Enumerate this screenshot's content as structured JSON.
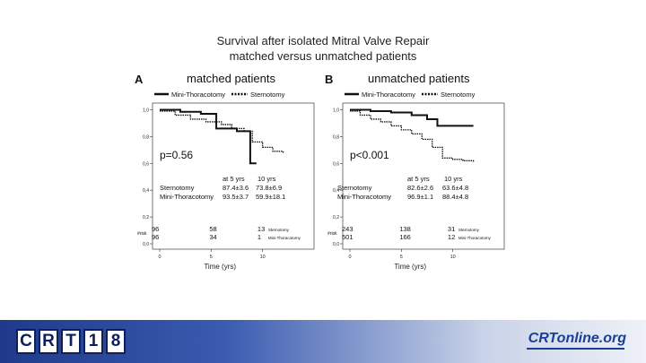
{
  "slide": {
    "title_line1": "Survival after isolated Mitral Valve Repair",
    "title_line2": "matched versus unmatched patients"
  },
  "chart_data": [
    {
      "type": "line",
      "panel_letter": "A",
      "title": "matched patients",
      "xlabel": "Time (yrs)",
      "ylabel": "",
      "xlim": [
        0,
        15
      ],
      "ylim": [
        0,
        1.05
      ],
      "xticks": [
        0,
        5,
        10
      ],
      "yticks": [
        0,
        0.2,
        0.4,
        0.6,
        0.8,
        1.0
      ],
      "ytick_labels": [
        "0,0",
        "0,2",
        "0,4",
        "0,6",
        "0,8",
        "1,0"
      ],
      "legend": [
        {
          "name": "Mini-Thoracotomy",
          "style": "solid"
        },
        {
          "name": "Sternotomy",
          "style": "dotted"
        }
      ],
      "p_value": "p=0.56",
      "series": [
        {
          "name": "Mini-Thoracotomy",
          "style": "solid",
          "x": [
            0,
            2,
            4,
            5.5,
            5.5,
            7.5,
            8.8,
            8.8,
            9.4
          ],
          "y": [
            1.0,
            0.985,
            0.97,
            0.94,
            0.86,
            0.84,
            0.75,
            0.6,
            0.6
          ]
        },
        {
          "name": "Sternotomy",
          "style": "dotted",
          "x": [
            0,
            1.5,
            3,
            4.5,
            6,
            7,
            8.2,
            9,
            10,
            11,
            12
          ],
          "y": [
            0.99,
            0.96,
            0.93,
            0.91,
            0.89,
            0.86,
            0.84,
            0.76,
            0.72,
            0.69,
            0.68
          ]
        }
      ],
      "stats_table": {
        "headers": [
          "",
          "at 5 yrs",
          "10 yrs"
        ],
        "rows": [
          [
            "Sternotomy",
            "87.4±3.6",
            "73.8±6.9"
          ],
          [
            "Mini-Thoracotomy",
            "93.5±3.7",
            "59.9±18.1"
          ]
        ]
      },
      "at_risk": {
        "label": "#risk",
        "rows": [
          {
            "name": "Sternotomy",
            "values": [
              "96",
              "58",
              "13"
            ]
          },
          {
            "name": "Mini-Thoracotomy",
            "values": [
              "96",
              "34",
              "1"
            ]
          }
        ]
      }
    },
    {
      "type": "line",
      "panel_letter": "B",
      "title": "unmatched patients",
      "xlabel": "Time (yrs)",
      "ylabel": "",
      "xlim": [
        0,
        15
      ],
      "ylim": [
        0,
        1.05
      ],
      "xticks": [
        0,
        5,
        10
      ],
      "yticks": [
        0,
        0.2,
        0.4,
        0.6,
        0.8,
        1.0
      ],
      "ytick_labels": [
        "0,0",
        "0,2",
        "0,4",
        "0,6",
        "0,8",
        "1,0"
      ],
      "legend": [
        {
          "name": "Mini-Thoracotomy",
          "style": "solid"
        },
        {
          "name": "Sternotomy",
          "style": "dotted"
        }
      ],
      "p_value": "p<0.001",
      "series": [
        {
          "name": "Mini-Thoracotomy",
          "style": "solid",
          "x": [
            0,
            2,
            4,
            6,
            7.5,
            8.5,
            10.5,
            12
          ],
          "y": [
            1.0,
            0.99,
            0.98,
            0.96,
            0.93,
            0.88,
            0.88,
            0.88
          ]
        },
        {
          "name": "Sternotomy",
          "style": "dotted",
          "x": [
            0,
            1,
            2,
            3,
            4,
            5,
            6,
            7,
            8,
            9,
            10,
            11,
            12
          ],
          "y": [
            0.99,
            0.96,
            0.93,
            0.91,
            0.88,
            0.85,
            0.82,
            0.78,
            0.72,
            0.64,
            0.63,
            0.62,
            0.61
          ]
        }
      ],
      "stats_table": {
        "headers": [
          "",
          "at 5 yrs",
          "10 yrs"
        ],
        "rows": [
          [
            "Sternotomy",
            "82.6±2.6",
            "63.6±4.8"
          ],
          [
            "Mini-Thoracotomy",
            "96.9±1.1",
            "88.4±4.8"
          ]
        ]
      },
      "at_risk": {
        "label": "#risk",
        "rows": [
          {
            "name": "Sternotomy",
            "values": [
              "243",
              "138",
              "31"
            ]
          },
          {
            "name": "Mini-Thoracotomy",
            "values": [
              "501",
              "166",
              "12"
            ]
          }
        ]
      }
    }
  ],
  "footer": {
    "crt_letters": [
      "C",
      "R",
      "T",
      "1",
      "8"
    ],
    "site_text": "CRTonline.org",
    "colors": {
      "band_dark": "#1f3a8a",
      "logo_navy": "#0d1f5c",
      "site_blue": "#1a3f96"
    }
  }
}
